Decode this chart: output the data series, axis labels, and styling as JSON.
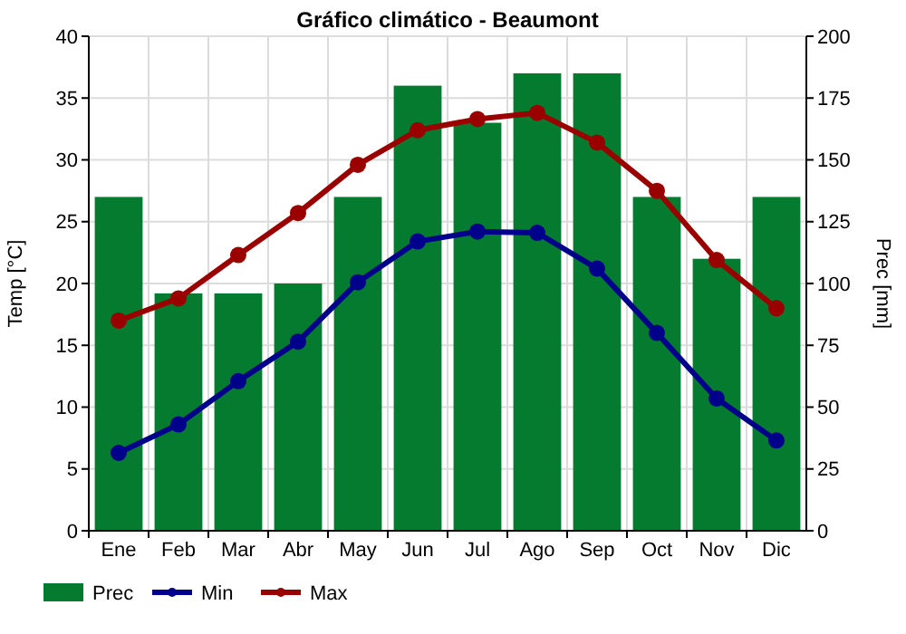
{
  "chart_data": {
    "type": "bar",
    "title": "Gráfico climático - Beaumont",
    "ylabel": "Temp [°C]",
    "y2label": "Prec [mm]",
    "categories": [
      "Ene",
      "Feb",
      "Mar",
      "Abr",
      "May",
      "Jun",
      "Jul",
      "Ago",
      "Sep",
      "Oct",
      "Nov",
      "Dic"
    ],
    "series": [
      {
        "name": "Prec",
        "axis": "y2",
        "color": "#057b2f",
        "values": [
          135,
          96,
          96,
          100,
          135,
          180,
          165,
          185,
          185,
          135,
          110,
          135
        ]
      },
      {
        "name": "Min",
        "type": "line",
        "color": "#00008b",
        "values": [
          6.3,
          8.6,
          12.1,
          15.3,
          20.1,
          23.4,
          24.2,
          24.1,
          21.2,
          16,
          10.7,
          7.3
        ]
      },
      {
        "name": "Max",
        "type": "line",
        "color": "#9b0000",
        "values": [
          17,
          18.8,
          22.3,
          25.7,
          29.6,
          32.4,
          33.3,
          33.8,
          31.4,
          27.5,
          21.9,
          18
        ]
      }
    ],
    "ylim": [
      0,
      40
    ],
    "yticks": [
      0,
      5,
      10,
      15,
      20,
      25,
      30,
      35,
      40
    ],
    "y2lim": [
      0,
      200
    ],
    "y2ticks": [
      0,
      25,
      50,
      75,
      100,
      125,
      150,
      175,
      200
    ],
    "grid": true,
    "legend": "bottom",
    "marker": "circle"
  }
}
